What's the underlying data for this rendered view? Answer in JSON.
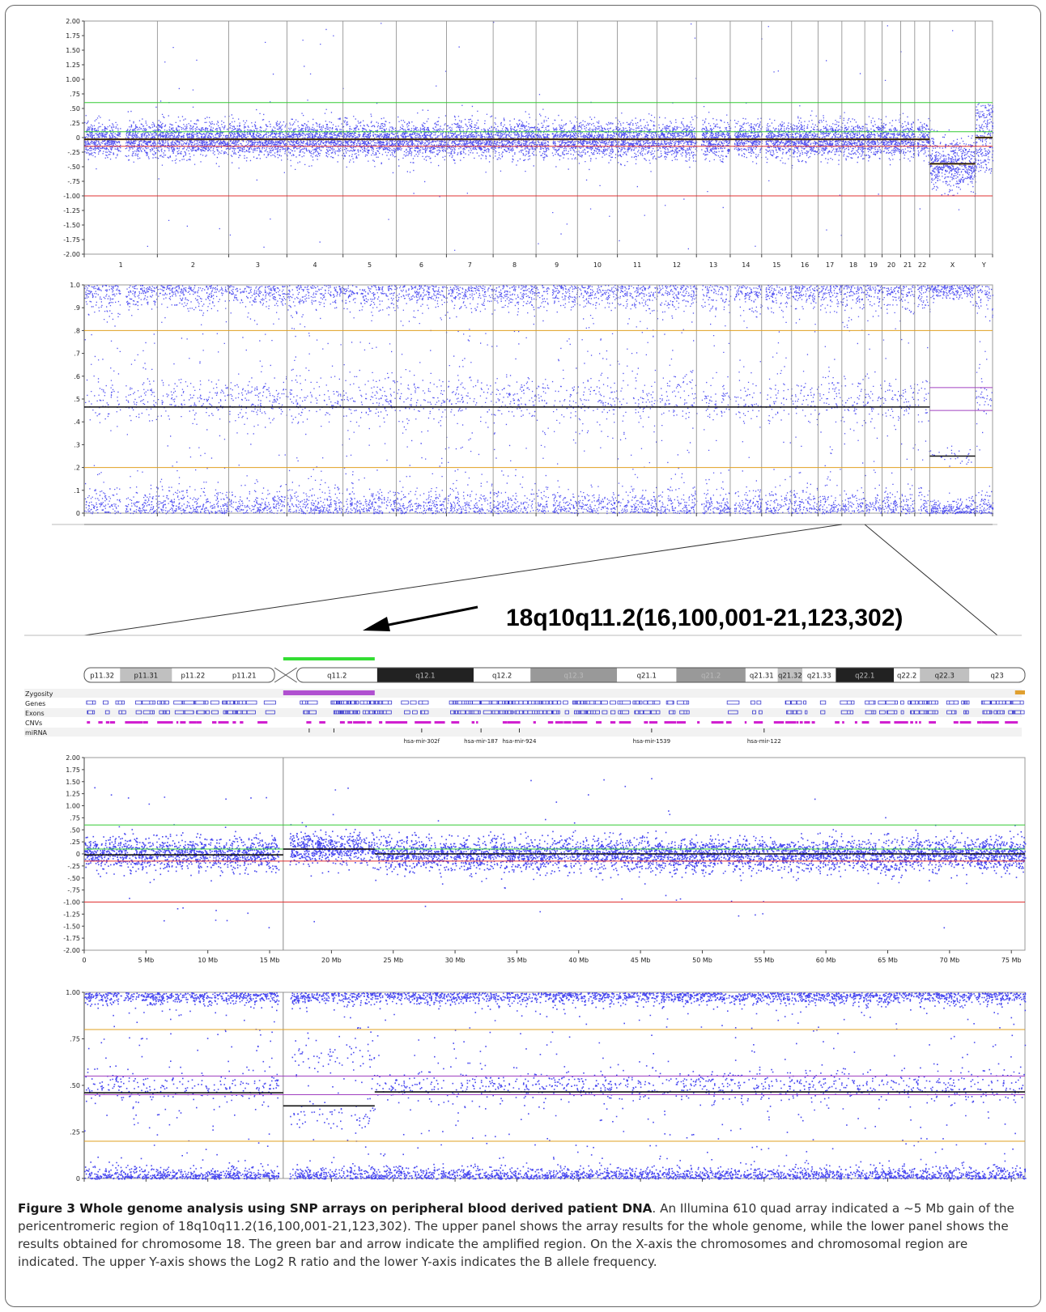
{
  "chart_data": [
    {
      "type": "scatter",
      "panel": "genome-log2r",
      "y_ticks": [
        "2.00",
        "1.75",
        "1.50",
        "1.25",
        "1.00",
        ".75",
        ".50",
        ".25",
        "0",
        "-.25",
        "-.50",
        "-.75",
        "-1.00",
        "-1.25",
        "-1.50",
        "-1.75",
        "-2.00"
      ],
      "ylim": [
        -2.0,
        2.0
      ],
      "x_categories": [
        "1",
        "2",
        "3",
        "4",
        "5",
        "6",
        "7",
        "8",
        "9",
        "10",
        "11",
        "12",
        "13",
        "14",
        "15",
        "16",
        "17",
        "18",
        "19",
        "20",
        "21",
        "22",
        "X",
        "Y"
      ],
      "chromosome_sizes_mb": [
        249,
        243,
        198,
        191,
        181,
        171,
        159,
        146,
        141,
        136,
        135,
        134,
        115,
        107,
        102,
        90,
        81,
        78,
        59,
        63,
        48,
        51,
        155,
        59
      ],
      "reference_lines": [
        {
          "y": 0.6,
          "color": "#33cc33"
        },
        {
          "y": 0.1,
          "color": "#33cc33"
        },
        {
          "y": -0.15,
          "color": "#e03030"
        },
        {
          "y": -1.0,
          "color": "#e03030"
        }
      ],
      "smoothed_mean": [
        {
          "chromosomes": "1-22",
          "value": -0.03
        },
        {
          "chromosomes": "X",
          "value": -0.45
        },
        {
          "chromosomes": "Y",
          "value": 0.0
        }
      ],
      "point_color": "#3333ee"
    },
    {
      "type": "scatter",
      "panel": "genome-baf",
      "y_ticks": [
        "1.0",
        ".9",
        ".8",
        ".7",
        ".6",
        ".5",
        ".4",
        ".3",
        ".2",
        ".1",
        "0"
      ],
      "ylim": [
        0,
        1.0
      ],
      "reference_lines": [
        {
          "y": 0.8,
          "color": "#e0a020"
        },
        {
          "y": 0.2,
          "color": "#e0a020"
        },
        {
          "y": 0.55,
          "color": "#a040c0",
          "chromosomes": "X-Y"
        },
        {
          "y": 0.45,
          "color": "#a040c0",
          "chromosomes": "X-Y"
        }
      ],
      "smoothed_mean": [
        {
          "chromosomes": "1-22",
          "value": 0.465
        },
        {
          "chromosomes": "X",
          "value": 0.25
        }
      ],
      "point_color": "#3333ee"
    },
    {
      "type": "scatter",
      "panel": "chr18-log2r",
      "y_ticks": [
        "2.00",
        "1.75",
        "1.50",
        "1.25",
        "1.00",
        ".75",
        ".50",
        ".25",
        "0",
        "-.25",
        "-.50",
        "-.75",
        "-1.00",
        "-1.25",
        "-1.50",
        "-1.75",
        "-2.00"
      ],
      "ylim": [
        -2.0,
        2.0
      ],
      "x_ticks": [
        "0",
        "5 Mb",
        "10 Mb",
        "15 Mb",
        "20 Mb",
        "25 Mb",
        "30 Mb",
        "35 Mb",
        "40 Mb",
        "45 Mb",
        "50 Mb",
        "55 Mb",
        "60 Mb",
        "65 Mb",
        "70 Mb",
        "75 Mb"
      ],
      "xlim": [
        0,
        76.1
      ],
      "centromere_mb": 16.1,
      "reference_lines": [
        {
          "y": 0.6,
          "color": "#33cc33"
        },
        {
          "y": 0.1,
          "color": "#33cc33"
        },
        {
          "y": -0.15,
          "color": "#e03030"
        },
        {
          "y": -1.0,
          "color": "#e03030"
        }
      ],
      "smoothed_segments": [
        {
          "start_mb": 0,
          "end_mb": 16.1,
          "value": -0.02
        },
        {
          "start_mb": 16.1,
          "end_mb": 23.5,
          "value": 0.1
        },
        {
          "start_mb": 23.5,
          "end_mb": 76.1,
          "value": 0.0
        }
      ],
      "point_color": "#3333ee"
    },
    {
      "type": "scatter",
      "panel": "chr18-baf",
      "y_ticks": [
        "1.00",
        ".75",
        ".50",
        ".25",
        "0"
      ],
      "ylim": [
        0,
        1.0
      ],
      "reference_lines": [
        {
          "y": 0.8,
          "color": "#e0a020"
        },
        {
          "y": 0.2,
          "color": "#e0a020"
        },
        {
          "y": 0.55,
          "color": "#a040c0"
        },
        {
          "y": 0.45,
          "color": "#a040c0"
        }
      ],
      "smoothed_segments": [
        {
          "start_mb": 0,
          "end_mb": 16.1,
          "value": 0.46
        },
        {
          "start_mb": 16.1,
          "end_mb": 23.5,
          "value": 0.39
        },
        {
          "start_mb": 23.5,
          "end_mb": 76.1,
          "value": 0.465
        }
      ],
      "point_color": "#3333ee"
    }
  ],
  "region_label": "18q10q11.2(16,100,001-21,123,302)",
  "ideogram": {
    "bands": [
      {
        "name": "p11.32",
        "start_mb": 0,
        "end_mb": 2.9,
        "stain": "#ffffff"
      },
      {
        "name": "p11.31",
        "start_mb": 2.9,
        "end_mb": 7.1,
        "stain": "#c0c0c0"
      },
      {
        "name": "p11.22",
        "start_mb": 7.1,
        "end_mb": 10.5,
        "stain": "#ffffff"
      },
      {
        "name": "p11.21",
        "start_mb": 10.5,
        "end_mb": 15.4,
        "stain": "#ffffff"
      },
      {
        "name": "q11.2",
        "start_mb": 17.2,
        "end_mb": 23.7,
        "stain": "#ffffff"
      },
      {
        "name": "q12.1",
        "start_mb": 23.7,
        "end_mb": 31.5,
        "stain": "#222222"
      },
      {
        "name": "q12.2",
        "start_mb": 31.5,
        "end_mb": 36.1,
        "stain": "#ffffff"
      },
      {
        "name": "q12.3",
        "start_mb": 36.1,
        "end_mb": 43.1,
        "stain": "#999999"
      },
      {
        "name": "q21.1",
        "start_mb": 43.1,
        "end_mb": 47.9,
        "stain": "#ffffff"
      },
      {
        "name": "q21.2",
        "start_mb": 47.9,
        "end_mb": 53.5,
        "stain": "#999999"
      },
      {
        "name": "q21.31",
        "start_mb": 53.5,
        "end_mb": 56.1,
        "stain": "#ffffff"
      },
      {
        "name": "q21.32",
        "start_mb": 56.1,
        "end_mb": 58.1,
        "stain": "#c0c0c0"
      },
      {
        "name": "q21.33",
        "start_mb": 58.1,
        "end_mb": 60.8,
        "stain": "#ffffff"
      },
      {
        "name": "q22.1",
        "start_mb": 60.8,
        "end_mb": 65.5,
        "stain": "#222222"
      },
      {
        "name": "q22.2",
        "start_mb": 65.5,
        "end_mb": 67.6,
        "stain": "#ffffff"
      },
      {
        "name": "q22.3",
        "start_mb": 67.6,
        "end_mb": 71.6,
        "stain": "#c0c0c0"
      },
      {
        "name": "q23",
        "start_mb": 71.6,
        "end_mb": 76.1,
        "stain": "#ffffff"
      }
    ],
    "amplified_region_color": "#33dd33"
  },
  "tracks": {
    "labels": [
      "Zygosity",
      "Genes",
      "Exons",
      "CNVs",
      "miRNA"
    ],
    "mirna": [
      "hsa-mir-302f",
      "hsa-mir-187",
      "hsa-mir-924",
      "hsa-mir-1539",
      "hsa-mir-122"
    ],
    "zygosity_color": "#b050d0",
    "gene_color": "#3333cc",
    "cnv_color": "#d020d0"
  },
  "caption": {
    "bold": "Figure 3 Whole genome analysis using SNP arrays on peripheral blood derived patient DNA",
    "text": ". An Illumina 610 quad array indicated a ~5 Mb gain of the pericentromeric region of 18q10q11.2(16,100,001-21,123,302). The upper panel shows the array results for the whole genome, while the lower panel shows the results obtained for chromosome 18. The green bar and arrow indicate the amplified region. On the X-axis the chromosomes and chromosomal region are indicated. The upper Y-axis shows the Log2 R ratio and the lower Y-axis indicates the B allele frequency."
  }
}
